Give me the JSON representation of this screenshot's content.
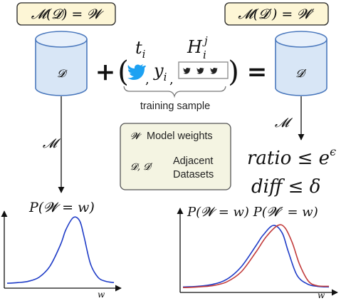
{
  "left_box_label": "𝓜(𝓓) = 𝓦",
  "right_box_label": "𝓜(𝓓′) = 𝓦′",
  "left_db_label": "𝓓",
  "right_db_label": "𝓓′",
  "plus_sign": "+",
  "equals_sign": "=",
  "paren_open": "(",
  "paren_close": ")",
  "sample": {
    "t_label": "t",
    "t_sub": "i",
    "y_label": "y",
    "y_sub": "i",
    "comma1": ",",
    "comma2": ",",
    "H_label": "H",
    "H_sup": "j",
    "H_sub": "i",
    "brace_caption": "training sample"
  },
  "mechanism_left": "𝓜",
  "mechanism_right": "𝓜",
  "legend": {
    "w_symbol": "𝓦",
    "w_text": "Model weights",
    "d_symbol": "𝓓, 𝓓′",
    "d_text_line1": "Adjacent",
    "d_text_line2": "Datasets"
  },
  "bounds": {
    "ratio_text": "ratio ≤ e",
    "ratio_exp": "ϵ",
    "diff_text": "diff ≤ δ"
  },
  "colors": {
    "yellow_fill": "#fdf6d6",
    "legend_fill": "#f4f4e2",
    "db_fill": "#d8e6f6",
    "db_stroke": "#4a78bd",
    "curve_blue": "#1f3cc7",
    "curve_red": "#c23b3b",
    "twitter_blue": "#1da1f2"
  },
  "chart_data": [
    {
      "type": "line",
      "title": "P(𝓦 = w)",
      "xlabel": "w",
      "ylabel": "",
      "grid": false,
      "series": [
        {
          "color": "#1f3cc7",
          "x": [
            0,
            0.1,
            0.2,
            0.3,
            0.4,
            0.5,
            0.55,
            0.62,
            0.68,
            0.72,
            0.78,
            0.85,
            0.92,
            1.0
          ],
          "y": [
            0.03,
            0.04,
            0.06,
            0.12,
            0.28,
            0.6,
            0.82,
            1.0,
            0.95,
            0.72,
            0.32,
            0.12,
            0.06,
            0.04
          ]
        }
      ]
    },
    {
      "type": "line",
      "title": "P(𝓦 = w)  P(𝓦′ = w)",
      "xlabel": "w",
      "ylabel": "",
      "grid": false,
      "series": [
        {
          "color": "#1f3cc7",
          "x": [
            0,
            0.1,
            0.2,
            0.3,
            0.4,
            0.5,
            0.55,
            0.62,
            0.68,
            0.72,
            0.78,
            0.85,
            0.92,
            1.0
          ],
          "y": [
            0.03,
            0.04,
            0.07,
            0.15,
            0.35,
            0.68,
            0.85,
            1.0,
            0.88,
            0.6,
            0.22,
            0.08,
            0.04,
            0.03
          ]
        },
        {
          "color": "#c23b3b",
          "x": [
            0,
            0.1,
            0.2,
            0.3,
            0.4,
            0.5,
            0.57,
            0.65,
            0.7,
            0.75,
            0.8,
            0.86,
            0.92,
            1.0
          ],
          "y": [
            0.02,
            0.03,
            0.05,
            0.11,
            0.27,
            0.58,
            0.82,
            1.0,
            0.96,
            0.72,
            0.38,
            0.12,
            0.05,
            0.04
          ]
        }
      ]
    }
  ]
}
